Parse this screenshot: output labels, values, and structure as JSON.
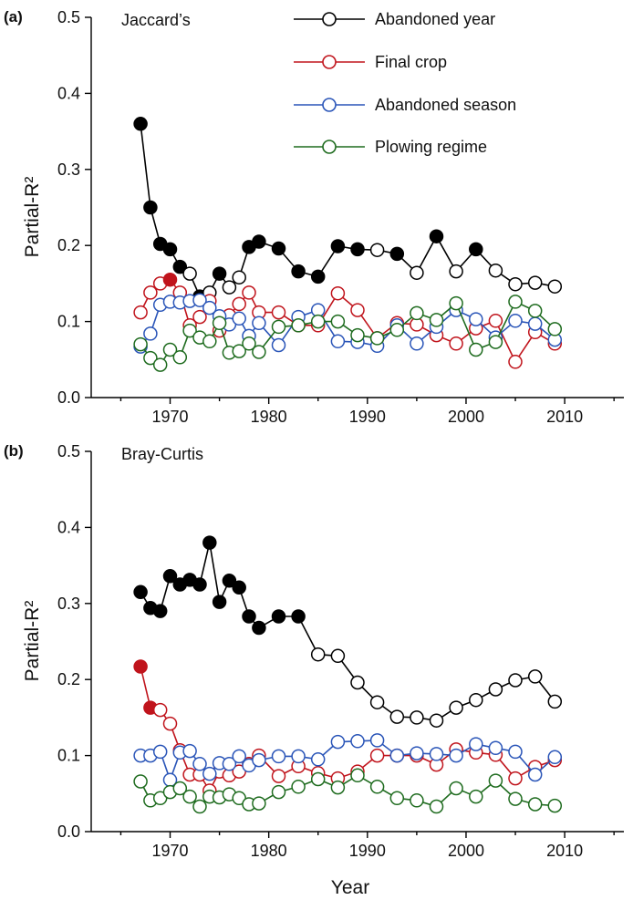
{
  "colors": {
    "abandoned_year": "#000000",
    "final_crop": "#c0141c",
    "abandoned_season": "#2a55b8",
    "plowing_regime": "#1e6b1e"
  },
  "chart_data": [
    {
      "type": "line",
      "panel_label": "(a)",
      "title": "Jaccard’s",
      "xlabel": "",
      "ylabel": "Partial-R²",
      "xlim": [
        1962,
        2016
      ],
      "ylim": [
        0,
        0.5
      ],
      "xticks": [
        1970,
        1980,
        1990,
        2000,
        2010
      ],
      "yticks": [
        "0.0",
        "0.1",
        "0.2",
        "0.3",
        "0.4",
        "0.5"
      ],
      "legend_position": "top-right",
      "series": [
        {
          "name": "Abandoned year",
          "color_key": "abandoned_year",
          "x": [
            1967,
            1968,
            1969,
            1970,
            1971,
            1972,
            1973,
            1974,
            1975,
            1976,
            1977,
            1978,
            1979,
            1981,
            1983,
            1985,
            1987,
            1989,
            1991,
            1993,
            1995,
            1997,
            1999,
            2001,
            2003,
            2005,
            2007,
            2009
          ],
          "y": [
            0.36,
            0.25,
            0.202,
            0.195,
            0.172,
            0.163,
            0.133,
            0.138,
            0.163,
            0.145,
            0.158,
            0.198,
            0.205,
            0.196,
            0.166,
            0.159,
            0.199,
            0.195,
            0.194,
            0.189,
            0.164,
            0.212,
            0.166,
            0.195,
            0.167,
            0.149,
            0.151,
            0.146
          ],
          "filled": [
            true,
            true,
            true,
            true,
            true,
            false,
            true,
            false,
            true,
            false,
            false,
            true,
            true,
            true,
            true,
            true,
            true,
            true,
            false,
            true,
            false,
            true,
            false,
            true,
            false,
            false,
            false,
            false
          ]
        },
        {
          "name": "Final crop",
          "color_key": "final_crop",
          "x": [
            1967,
            1968,
            1969,
            1970,
            1971,
            1972,
            1973,
            1974,
            1975,
            1976,
            1977,
            1978,
            1979,
            1981,
            1983,
            1985,
            1987,
            1989,
            1991,
            1993,
            1995,
            1997,
            1999,
            2001,
            2003,
            2005,
            2007,
            2009
          ],
          "y": [
            0.112,
            0.138,
            0.15,
            0.155,
            0.138,
            0.095,
            0.106,
            0.127,
            0.088,
            0.108,
            0.123,
            0.138,
            0.112,
            0.112,
            0.095,
            0.095,
            0.137,
            0.115,
            0.078,
            0.098,
            0.096,
            0.082,
            0.071,
            0.091,
            0.101,
            0.047,
            0.086,
            0.071
          ],
          "filled": [
            false,
            false,
            false,
            true,
            false,
            false,
            false,
            false,
            false,
            false,
            false,
            false,
            false,
            false,
            false,
            false,
            false,
            false,
            false,
            false,
            false,
            false,
            false,
            false,
            false,
            false,
            false,
            false
          ]
        },
        {
          "name": "Abandoned season",
          "color_key": "abandoned_season",
          "x": [
            1967,
            1968,
            1969,
            1970,
            1971,
            1972,
            1973,
            1974,
            1975,
            1976,
            1977,
            1978,
            1979,
            1981,
            1983,
            1985,
            1987,
            1989,
            1991,
            1993,
            1995,
            1997,
            1999,
            2001,
            2003,
            2005,
            2007,
            2009
          ],
          "y": [
            0.067,
            0.084,
            0.122,
            0.126,
            0.125,
            0.127,
            0.128,
            0.118,
            0.107,
            0.096,
            0.104,
            0.081,
            0.098,
            0.069,
            0.106,
            0.115,
            0.074,
            0.073,
            0.068,
            0.095,
            0.071,
            0.093,
            0.115,
            0.103,
            0.079,
            0.101,
            0.097,
            0.076
          ],
          "filled": [
            false,
            false,
            false,
            false,
            false,
            false,
            false,
            false,
            false,
            false,
            false,
            false,
            false,
            false,
            false,
            false,
            false,
            false,
            false,
            false,
            false,
            false,
            false,
            false,
            false,
            false,
            false,
            false
          ]
        },
        {
          "name": "Plowing regime",
          "color_key": "plowing_regime",
          "x": [
            1967,
            1968,
            1969,
            1970,
            1971,
            1972,
            1973,
            1974,
            1975,
            1976,
            1977,
            1978,
            1979,
            1981,
            1983,
            1985,
            1987,
            1989,
            1991,
            1993,
            1995,
            1997,
            1999,
            2001,
            2003,
            2005,
            2007,
            2009
          ],
          "y": [
            0.07,
            0.052,
            0.043,
            0.063,
            0.053,
            0.088,
            0.079,
            0.074,
            0.098,
            0.059,
            0.061,
            0.071,
            0.06,
            0.093,
            0.095,
            0.1,
            0.1,
            0.082,
            0.078,
            0.089,
            0.111,
            0.102,
            0.124,
            0.063,
            0.073,
            0.126,
            0.114,
            0.09
          ],
          "filled": [
            false,
            false,
            false,
            false,
            false,
            false,
            false,
            false,
            false,
            false,
            false,
            false,
            false,
            false,
            false,
            false,
            false,
            false,
            false,
            false,
            false,
            false,
            false,
            false,
            false,
            false,
            false,
            false
          ]
        }
      ]
    },
    {
      "type": "line",
      "panel_label": "(b)",
      "title": "Bray-Curtis",
      "xlabel": "Year",
      "ylabel": "Partial-R²",
      "xlim": [
        1962,
        2016
      ],
      "ylim": [
        0,
        0.5
      ],
      "xticks": [
        1970,
        1980,
        1990,
        2000,
        2010
      ],
      "yticks": [
        "0.0",
        "0.1",
        "0.2",
        "0.3",
        "0.4",
        "0.5"
      ],
      "legend_position": "none",
      "series": [
        {
          "name": "Abandoned year",
          "color_key": "abandoned_year",
          "x": [
            1967,
            1968,
            1969,
            1970,
            1971,
            1972,
            1973,
            1974,
            1975,
            1976,
            1977,
            1978,
            1979,
            1981,
            1983,
            1985,
            1987,
            1989,
            1991,
            1993,
            1995,
            1997,
            1999,
            2001,
            2003,
            2005,
            2007,
            2009
          ],
          "y": [
            0.315,
            0.294,
            0.29,
            0.336,
            0.325,
            0.331,
            0.325,
            0.38,
            0.302,
            0.33,
            0.321,
            0.283,
            0.268,
            0.283,
            0.283,
            0.233,
            0.231,
            0.196,
            0.17,
            0.151,
            0.15,
            0.146,
            0.163,
            0.173,
            0.187,
            0.199,
            0.204,
            0.171
          ],
          "filled": [
            true,
            true,
            true,
            true,
            true,
            true,
            true,
            true,
            true,
            true,
            true,
            true,
            true,
            true,
            true,
            false,
            false,
            false,
            false,
            false,
            false,
            false,
            false,
            false,
            false,
            false,
            false,
            false
          ]
        },
        {
          "name": "Final crop",
          "color_key": "final_crop",
          "x": [
            1967,
            1968,
            1969,
            1970,
            1971,
            1972,
            1973,
            1974,
            1975,
            1976,
            1977,
            1978,
            1979,
            1981,
            1983,
            1985,
            1987,
            1989,
            1991,
            1993,
            1995,
            1997,
            1999,
            2001,
            2003,
            2005,
            2007,
            2009
          ],
          "y": [
            0.217,
            0.163,
            0.16,
            0.142,
            0.107,
            0.075,
            0.075,
            0.054,
            0.079,
            0.074,
            0.079,
            0.089,
            0.1,
            0.073,
            0.086,
            0.077,
            0.07,
            0.079,
            0.1,
            0.1,
            0.1,
            0.088,
            0.108,
            0.104,
            0.101,
            0.07,
            0.085,
            0.094
          ],
          "filled": [
            true,
            true,
            false,
            false,
            false,
            false,
            false,
            false,
            false,
            false,
            false,
            false,
            false,
            false,
            false,
            false,
            false,
            false,
            false,
            false,
            false,
            false,
            false,
            false,
            false,
            false,
            false,
            false
          ]
        },
        {
          "name": "Abandoned season",
          "color_key": "abandoned_season",
          "x": [
            1967,
            1968,
            1969,
            1970,
            1971,
            1972,
            1973,
            1974,
            1975,
            1976,
            1977,
            1978,
            1979,
            1981,
            1983,
            1985,
            1987,
            1989,
            1991,
            1993,
            1995,
            1997,
            1999,
            2001,
            2003,
            2005,
            2007,
            2009
          ],
          "y": [
            0.1,
            0.1,
            0.105,
            0.068,
            0.104,
            0.106,
            0.089,
            0.076,
            0.09,
            0.089,
            0.099,
            0.087,
            0.094,
            0.099,
            0.099,
            0.095,
            0.118,
            0.119,
            0.12,
            0.1,
            0.103,
            0.102,
            0.1,
            0.115,
            0.11,
            0.105,
            0.075,
            0.098
          ],
          "filled": [
            false,
            false,
            false,
            false,
            false,
            false,
            false,
            false,
            false,
            false,
            false,
            false,
            false,
            false,
            false,
            false,
            false,
            false,
            false,
            false,
            false,
            false,
            false,
            false,
            false,
            false,
            false,
            false
          ]
        },
        {
          "name": "Plowing regime",
          "color_key": "plowing_regime",
          "x": [
            1967,
            1968,
            1969,
            1970,
            1971,
            1972,
            1973,
            1974,
            1975,
            1976,
            1977,
            1978,
            1979,
            1981,
            1983,
            1985,
            1987,
            1989,
            1991,
            1993,
            1995,
            1997,
            1999,
            2001,
            2003,
            2005,
            2007,
            2009
          ],
          "y": [
            0.066,
            0.041,
            0.044,
            0.052,
            0.057,
            0.046,
            0.033,
            0.046,
            0.045,
            0.049,
            0.044,
            0.036,
            0.037,
            0.052,
            0.059,
            0.069,
            0.058,
            0.074,
            0.059,
            0.044,
            0.041,
            0.033,
            0.057,
            0.046,
            0.067,
            0.043,
            0.036,
            0.034
          ],
          "filled": [
            false,
            false,
            false,
            false,
            false,
            false,
            false,
            false,
            false,
            false,
            false,
            false,
            false,
            false,
            false,
            false,
            false,
            false,
            false,
            false,
            false,
            false,
            false,
            false,
            false,
            false,
            false,
            false
          ]
        }
      ]
    }
  ]
}
